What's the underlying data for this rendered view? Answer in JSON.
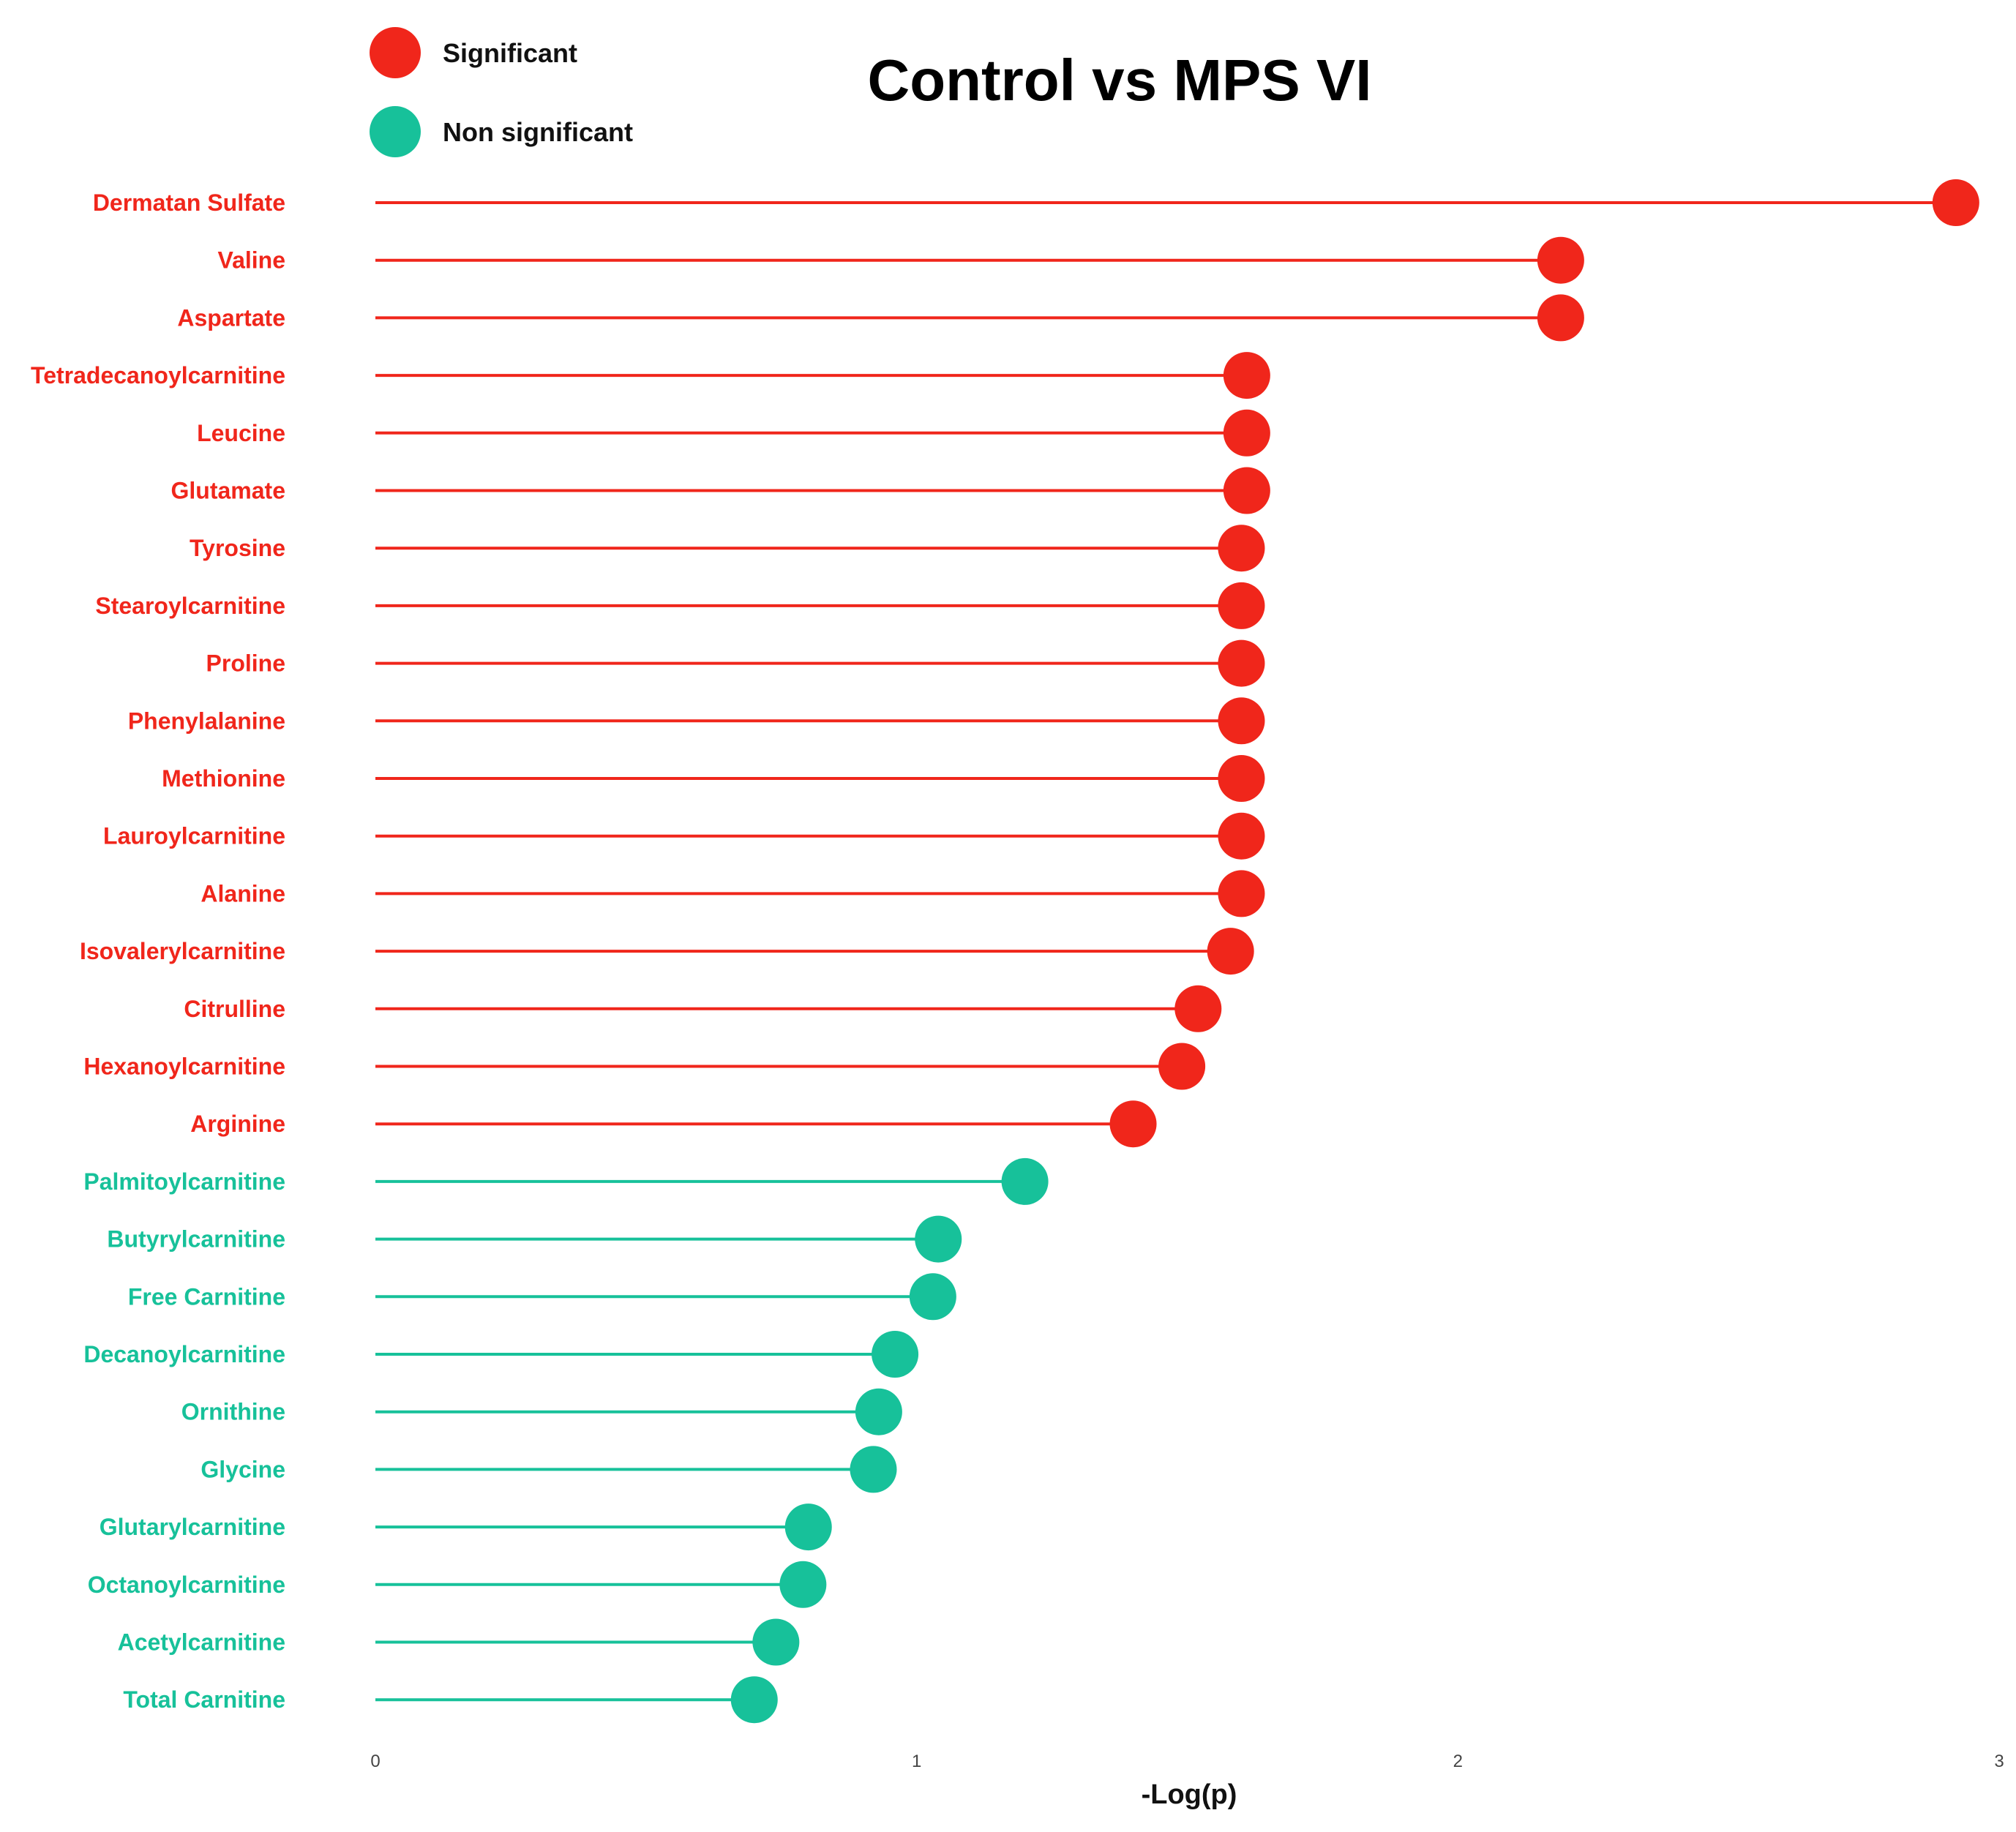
{
  "chart_data": {
    "type": "lollipop",
    "title": "Control vs MPS VI",
    "xlabel": "-Log(p)",
    "ylabel": "",
    "xlim": [
      0,
      3
    ],
    "xticks": [
      0,
      1,
      2,
      3
    ],
    "legend": {
      "placement": "top-left",
      "entries": [
        {
          "label": "Significant",
          "color": "#f0261b"
        },
        {
          "label": "Non significant",
          "color": "#17c19a"
        }
      ]
    },
    "colors": {
      "significant": "#f0261b",
      "non_significant": "#17c19a"
    },
    "points": [
      {
        "label": "Dermatan Sulfate",
        "value": 2.92,
        "significant": true
      },
      {
        "label": "Valine",
        "value": 2.19,
        "significant": true
      },
      {
        "label": "Aspartate",
        "value": 2.19,
        "significant": true
      },
      {
        "label": "Tetradecanoylcarnitine",
        "value": 1.61,
        "significant": true
      },
      {
        "label": "Leucine",
        "value": 1.61,
        "significant": true
      },
      {
        "label": "Glutamate",
        "value": 1.61,
        "significant": true
      },
      {
        "label": "Tyrosine",
        "value": 1.6,
        "significant": true
      },
      {
        "label": "Stearoylcarnitine",
        "value": 1.6,
        "significant": true
      },
      {
        "label": "Proline",
        "value": 1.6,
        "significant": true
      },
      {
        "label": "Phenylalanine",
        "value": 1.6,
        "significant": true
      },
      {
        "label": "Methionine",
        "value": 1.6,
        "significant": true
      },
      {
        "label": "Lauroylcarnitine",
        "value": 1.6,
        "significant": true
      },
      {
        "label": "Alanine",
        "value": 1.6,
        "significant": true
      },
      {
        "label": "Isovalerylcarnitine",
        "value": 1.58,
        "significant": true
      },
      {
        "label": "Citrulline",
        "value": 1.52,
        "significant": true
      },
      {
        "label": "Hexanoylcarnitine",
        "value": 1.49,
        "significant": true
      },
      {
        "label": "Arginine",
        "value": 1.4,
        "significant": true
      },
      {
        "label": "Palmitoylcarnitine",
        "value": 1.2,
        "significant": false
      },
      {
        "label": "Butyrylcarnitine",
        "value": 1.04,
        "significant": false
      },
      {
        "label": "Free Carnitine",
        "value": 1.03,
        "significant": false
      },
      {
        "label": "Decanoylcarnitine",
        "value": 0.96,
        "significant": false
      },
      {
        "label": "Ornithine",
        "value": 0.93,
        "significant": false
      },
      {
        "label": "Glycine",
        "value": 0.92,
        "significant": false
      },
      {
        "label": "Glutarylcarnitine",
        "value": 0.8,
        "significant": false
      },
      {
        "label": "Octanoylcarnitine",
        "value": 0.79,
        "significant": false
      },
      {
        "label": "Acetylcarnitine",
        "value": 0.74,
        "significant": false
      },
      {
        "label": "Total Carnitine",
        "value": 0.7,
        "significant": false
      }
    ]
  }
}
